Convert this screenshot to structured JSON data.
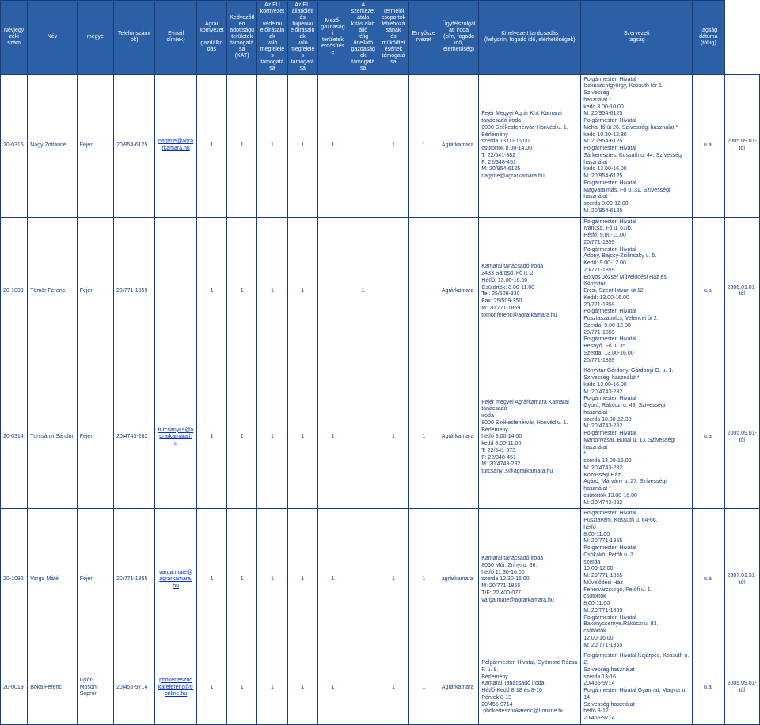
{
  "headers": [
    "Névjegy\nzéki\nszám",
    "Név",
    "megye",
    "Telefonszám(ok)",
    "E-mail\ncím(ek)",
    "Agrár\nkörnyezet-\ngazdálkodás",
    "Kedvezőtlen\nadottságú\nterületek\ntámogatása\n(KAT)",
    "Az EU\nkörnyezet-\nvédelmi\nelőírásainak\nvaló\nmegfelelés\ntámogatása",
    "Az EU\nállatjóléti és\nhigiéniai\nelőírásainak\nvaló\nmegfelelés\ntámogatása",
    "Mező-\ngazdasági\nterületek\nerdősítése",
    "A\nszerkezetátala\nkítás alatt álló\nfélig önellátó\ngazdaságok\ntámogatása",
    "Termelői\ncsoportok\nlétrehozásának\nés\nműködtetésének\ntámogatása",
    "Ernyőszervezet",
    "Ügyfélszolgálati iroda\n(cím, fogadó idő, elérhetőség)",
    "Kihelyezett tanácsadás\n(helyszín, fogadó idő, elérhetőségek)",
    "Szervezeti\ntagság",
    "Tagság\ndátuma\n(tól-ig)"
  ],
  "rows": [
    {
      "id": "20-0316",
      "name": "Nagy Zoltánné",
      "county": "Fejér",
      "phone": "20/954-6125",
      "email_text": "nagyne@agra\nrkamara.hu",
      "email_href": "mailto:nagyne@agrarkamara.hu",
      "cols": [
        "1",
        "1",
        "1",
        "1",
        "1",
        "",
        "1",
        "1"
      ],
      "org": "Agrárkamara",
      "office": "Fejér Megyei Agrár Kht. Kamarai tanácsadó iroda\n8000 Székesfehérvár, Honvéd u. 1. Bérlemény\nszerda 13.00-16.00\ncsütörtök 8.00-14.00\nT: 22/541-382\nF: 22/348-451\nM: 20/954-6125\nnagyne@agrarkamara.hu",
      "outreach": "Polgármesteri Hivatal\nIszkaszentgyörgy, Kossuth tér 1. Szívességi\nhasználat *\nkedd 8.00-10.00\nM: 20/954-6125\nPolgármesteri Hivatal\nMoha, fő út 26. Szívességi használat *\nkedd 10.30-12.30\nM: 20/954-6125\nPolgármesteri Hivatal\nSárkeresztes, Kossuth u. 44. Szívességi\nhasználat *\nkedd 13.00-16.00\nM: 20/954-6125\nPolgármesteri Hivatal\nMagyaralmás, Fő u. 31. Szívességi használat *\nszerda 8.00-12.00\nM: 20/954-6125",
      "membership": "u.a.",
      "date": "2005.09.01-től"
    },
    {
      "id": "20-1039",
      "name": "Tömör Ferenc",
      "county": "Fejér",
      "phone": "20/771-1859",
      "email_text": "",
      "email_href": "",
      "cols": [
        "1",
        "1",
        "1",
        "1",
        "",
        "1",
        "",
        ""
      ],
      "org": "Agrárkamara",
      "office": "Kamarai tanácsadó iroda\n2433 Sárosd, Fő u. 2.\nHétfő: 13.00-16.00\nCsütörtök: 8.00-11.00\nTel: 25/509-330\nFax: 25/509-350\nM: 20/771-1859\ntomor.ferenc@agrarkamara.hu",
      "outreach": "Polgármesteri Hivatal\nIváncsa, Fő u. 61/b.\nHétfő: 9.00-11.00\n20/771-1859\nPolgármesteri Hivatal\nAdony, Bajcsy-Zsilinszky u. 5.\nKedd: 9.00-12.00\n20/771-1859\nEötvös József Művelődési Ház és Könyvtár\nErcsi, Szent István út 12.\nKedd: 13.00-16.00\n20/771-1859\nPolgármesteri Hivatal\nPusztaszabolcs, Velencei út 2.\nSzerda: 9.00-12.00\n20/771-1859\nPolgármesteri Hivatal\nBesnyő, Fő u. 35.\nSzerda: 13.00-16.00\n20/771-1859",
      "membership": "u.a.",
      "date": "2006.01.01-től"
    },
    {
      "id": "20-0314",
      "name": "Turcsányi Sándor",
      "county": "Fejér",
      "phone": "20/4743-282",
      "email_text": "turcsanyi.s@a\ngrarkamara.h\nu",
      "email_href": "mailto:turcsanyi.s@agrarkamara.hu",
      "cols": [
        "1",
        "1",
        "1",
        "1",
        "1",
        "",
        "1",
        "1"
      ],
      "org": "Agrárkamara",
      "office": "Fejér megyei Agrárkamara Kamarai tanácsadó\niroda\n8000 Székesfehérvár, Honvéd u. 1. Bérlemény\nhétfő 8.00-14.00\nkedd 8.00-11.00\nT: 22/541-373\nF: 22/348-451\nM: 20/4743-282\nturcsanyi.s@agrarkamara.hu",
      "outreach": "Könyvtár Gárdony, Gárdonyi G. u. 1.\nSzívességi használat *\nkedd 13.00-16.00\nM: 20/4743-282\nPolgármesteri Hivatal\nGyúró, Rákóczi u. 49. Szívességi használat *\nszerda 10.30-12.30\nM: 20/4743-282\nPolgármesteri Hivatal\nMartonvásár, Budai u. 13. Szívességi használat\n*\nszerda 13.00-16.00\nM: 20/4743-282\nKözösségi Ház\nAgárd, Márvány u. 27. Szívességi használat *\ncsütörtök 13.00-16.00\nM: 20/4743-282",
      "membership": "u.a.",
      "date": "2005.09.01-től"
    },
    {
      "id": "20-1082",
      "name": "Varga Máté",
      "county": "Fejér",
      "phone": "20/771-1855",
      "email_text": "varga.mate@\nagrarkamara.\nhu",
      "email_href": "mailto:varga.mate@agrarkamara.hu",
      "cols": [
        "1",
        "1",
        "1",
        "1",
        "1",
        "",
        "1",
        "1"
      ],
      "org": "agrárkamara",
      "office": "Kamarai tanácsadó iroda\n8060 Mór, Zrínyi u. 36.\nhétfő 11.30-16.00\nszerda 12.30-16.00\nM: 20/771-1855\nT/F: 22/400-077\nvarga.mate@agrarkamara.hu",
      "outreach": "Polgármesteri Hivatal\nPusztavám, Kossuth u. 64-66.\nhétfő\n8.00-11.00\nM: 20/771-1855\nPolgármesteri Hivatal\nCsókakő, Petőfi u. 3.\nszerda\n10.00-12.00\nM: 20/771-1855\nMűvelődési Ház\nFehérvárcsurgó, Petőfi u. 1.\ncsütörtök\n8.00-11.00\nM: 20/771-1855\nPolgármesteri Hivatal\nBakonycsernye,Rákóczi u. 83.\ncsütörtök\n12.00-16.00\nM: 20/771-1855",
      "membership": "u.a.",
      "date": "2007.01.31-től"
    },
    {
      "id": "20-0019",
      "name": "Bóka Ferenc",
      "county": "Győr-Moson-\nSopron",
      "phone": "20/455-9714",
      "email_text": "phdkerteszbo\nkareferenc@t-\nonline.hu",
      "email_href": "mailto:phdkerteszbokareferenc@t-online.hu",
      "cols": [
        "1",
        "1",
        "1",
        "1",
        "1",
        "",
        "1",
        "1"
      ],
      "org": "Agrárkamara",
      "office": "Polgármesteri Hivatal, Gyömöre Rózsa F. u. 9.\nBérlemény\nKamarai Tanácsadó iroda\nHétfő-Kedd 8-18 és 8-16\nPéntek 8-13\n20/455-9714\n.phdkerteszbokarenc@t-online.hu",
      "outreach": "Polgármesteri Hivatal Kajárpéc, Kossuth u. 2.\nSzívesség használat\nszerda 13-16\n20/455-9714\nPolgármesteri Hivatal Gyarmat, Magyar u. 14.\nSzívesség használat\nhétfő 8-12\n20/455-9714",
      "membership": "u.a.",
      "date": "2005.09.01-től"
    }
  ]
}
